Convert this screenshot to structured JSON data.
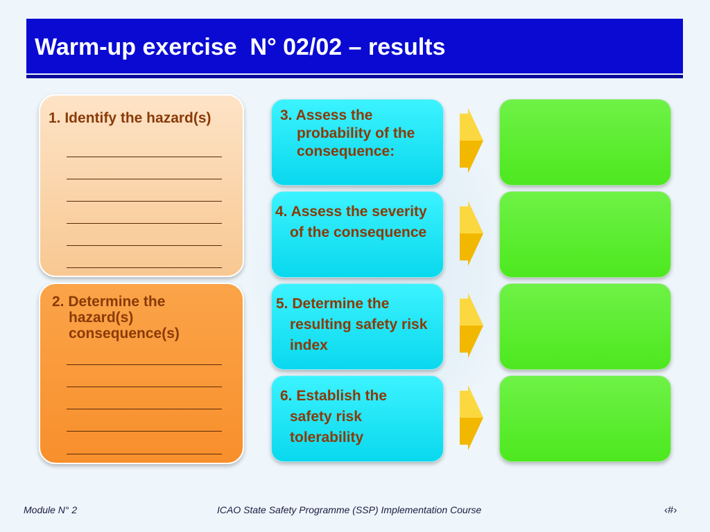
{
  "slide": {
    "title": "Warm-up exercise  N° 02/02 – results"
  },
  "steps_left": [
    {
      "label": "1. Identify the hazard(s)"
    },
    {
      "label_lines": [
        "2. Determine the",
        "hazard(s)",
        "consequence(s)"
      ]
    }
  ],
  "steps_right": [
    {
      "label_lines": [
        "3. Assess the",
        "probability of the",
        "consequence:"
      ]
    },
    {
      "label_lines": [
        "4. Assess the severity",
        "of the consequence"
      ]
    },
    {
      "label_lines": [
        "5. Determine the",
        "resulting safety risk",
        "index"
      ]
    },
    {
      "label_lines": [
        "6. Establish the",
        "safety risk",
        "tolerability"
      ]
    }
  ],
  "footer": {
    "module": "Module N° 2",
    "course": "ICAO State Safety Programme (SSP) Implementation Course",
    "page": "‹#›"
  },
  "colors": {
    "title_bar": "#0a0ad2",
    "step_text": "#8a3a08",
    "cyan_box": "#16e2f3",
    "green_box": "#55ea28",
    "arrow": "#f7c400"
  }
}
